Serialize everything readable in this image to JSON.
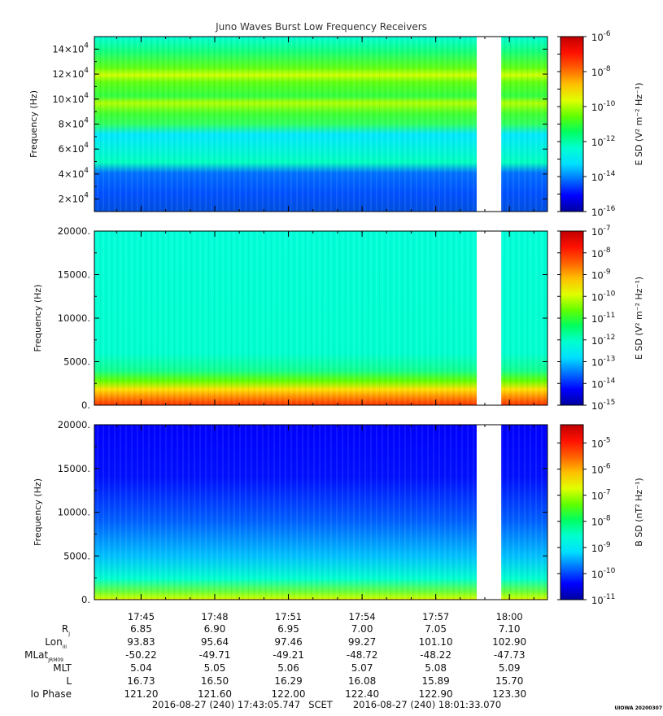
{
  "title": "Juno Waves Burst Low Frequency Receivers",
  "colors": {
    "colormap": [
      "#0000a0",
      "#0000ff",
      "#0070ff",
      "#00e0ff",
      "#00ffd0",
      "#00ff60",
      "#60ff00",
      "#e0ff00",
      "#ffc000",
      "#ff6000",
      "#ff1000",
      "#c00000"
    ],
    "gap": "#ffffff",
    "frame": "#000000"
  },
  "chart_data": [
    {
      "type": "heatmap",
      "name": "panel-1",
      "ylabel": "Frequency (Hz)",
      "yticks": [
        20000,
        40000,
        60000,
        80000,
        100000,
        120000,
        140000
      ],
      "ytick_labels": [
        {
          "m": "2",
          "e": "4"
        },
        {
          "m": "4",
          "e": "4"
        },
        {
          "m": "6",
          "e": "4"
        },
        {
          "m": "8",
          "e": "4"
        },
        {
          "m": "10",
          "e": "4"
        },
        {
          "m": "12",
          "e": "4"
        },
        {
          "m": "14",
          "e": "4"
        }
      ],
      "ylim": [
        10000,
        150000
      ],
      "xlim": [
        "17:43:05.747",
        "18:01:33.070"
      ],
      "data_gap": [
        "17:58:40",
        "17:59:40"
      ],
      "colorbar": {
        "label": "E SD (V² m⁻² Hz⁻¹)",
        "exponents": [
          "-6",
          "-8",
          "-10",
          "-12",
          "-14",
          "-16"
        ],
        "range_log10": [
          -16,
          -6
        ]
      }
    },
    {
      "type": "heatmap",
      "name": "panel-2",
      "ylabel": "Frequency (Hz)",
      "yticks": [
        0,
        5000,
        10000,
        15000,
        20000
      ],
      "ytick_labels": [
        "0.",
        "5000.",
        "10000.",
        "15000.",
        "20000."
      ],
      "ylim": [
        0,
        20000
      ],
      "xlim": [
        "17:43:05.747",
        "18:01:33.070"
      ],
      "data_gap": [
        "17:58:40",
        "17:59:40"
      ],
      "colorbar": {
        "label": "E SD (V² m⁻² Hz⁻¹)",
        "exponents": [
          "-7",
          "-8",
          "-9",
          "-10",
          "-11",
          "-12",
          "-13",
          "-14",
          "-15"
        ],
        "range_log10": [
          -15,
          -7
        ]
      }
    },
    {
      "type": "heatmap",
      "name": "panel-3",
      "ylabel": "Frequency (Hz)",
      "yticks": [
        0,
        5000,
        10000,
        15000,
        20000
      ],
      "ytick_labels": [
        "0.",
        "5000.",
        "10000.",
        "15000.",
        "20000."
      ],
      "ylim": [
        0,
        20000
      ],
      "xlim": [
        "17:43:05.747",
        "18:01:33.070"
      ],
      "data_gap": [
        "17:58:40",
        "17:59:40"
      ],
      "colorbar": {
        "label": "B SD (nT² Hz⁻¹)",
        "exponents": [
          "-5",
          "-6",
          "-7",
          "-8",
          "-9",
          "-10",
          "-11"
        ],
        "range_log10": [
          -11,
          -4.3
        ]
      }
    }
  ],
  "time_axis": {
    "ticks": [
      "17:45",
      "17:48",
      "17:51",
      "17:54",
      "17:57",
      "18:00"
    ]
  },
  "ephemeris": {
    "rows": [
      {
        "label": "R",
        "sub": "J",
        "values": [
          "6.85",
          "6.90",
          "6.95",
          "7.00",
          "7.05",
          "7.10"
        ]
      },
      {
        "label": "Lon",
        "sub": "III",
        "values": [
          "93.83",
          "95.64",
          "97.46",
          "99.27",
          "101.10",
          "102.90"
        ]
      },
      {
        "label": "MLat",
        "sub": "JRM09",
        "values": [
          "-50.22",
          "-49.71",
          "-49.21",
          "-48.72",
          "-48.22",
          "-47.73"
        ]
      },
      {
        "label": "MLT",
        "sub": "",
        "values": [
          "5.04",
          "5.05",
          "5.06",
          "5.07",
          "5.08",
          "5.09"
        ]
      },
      {
        "label": "L",
        "sub": "",
        "values": [
          "16.73",
          "16.50",
          "16.29",
          "16.08",
          "15.89",
          "15.70"
        ]
      },
      {
        "label": "Io Phase",
        "sub": "",
        "values": [
          "121.20",
          "121.60",
          "122.00",
          "122.40",
          "122.90",
          "123.30"
        ]
      }
    ]
  },
  "footer": {
    "start": "2016-08-27 (240) 17:43:05.747",
    "scet": "SCET",
    "end": "2016-08-27 (240) 18:01:33.070",
    "credit": "UIOWA 20200307"
  }
}
